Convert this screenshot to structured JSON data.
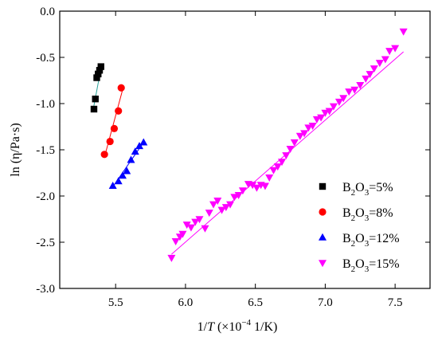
{
  "chart_data": {
    "type": "scatter",
    "title": "",
    "xlabel": "1/T (×10⁻⁴ 1/K)",
    "xlabel_parts": [
      "1/",
      "T",
      " (×10",
      "−4",
      " 1/K)"
    ],
    "ylabel": "ln (η/Pa·s)",
    "xlim": [
      5.1,
      7.75
    ],
    "ylim": [
      -3.0,
      0.0
    ],
    "xticks": [
      5.5,
      6.0,
      6.5,
      7.0,
      7.5
    ],
    "yticks": [
      0.0,
      -0.5,
      -1.0,
      -1.5,
      -2.0,
      -2.5,
      -3.0
    ],
    "xtick_labels": [
      "5.5",
      "6.0",
      "6.5",
      "7.0",
      "7.5"
    ],
    "ytick_labels": [
      "0.0",
      "-0.5",
      "-1.0",
      "-1.5",
      "-2.0",
      "-2.5",
      "-3.0"
    ],
    "grid": false,
    "legend_position": "bottom-right",
    "series": [
      {
        "name": "B2O3=5%",
        "name_parts": [
          "B",
          "2",
          "O",
          "3",
          "=5%"
        ],
        "marker": "square",
        "color": "#000000",
        "fit_color": "#2aa198",
        "x": [
          5.345,
          5.355,
          5.365,
          5.375,
          5.385,
          5.395
        ],
        "y": [
          -1.06,
          -0.95,
          -0.72,
          -0.68,
          -0.64,
          -0.6
        ],
        "fit": [
          [
            5.34,
            -1.06
          ],
          [
            5.4,
            -0.58
          ]
        ]
      },
      {
        "name": "B2O3=8%",
        "name_parts": [
          "B",
          "2",
          "O",
          "3",
          "=8%"
        ],
        "marker": "circle",
        "color": "#ff0000",
        "fit_color": "#ff0000",
        "x": [
          5.42,
          5.46,
          5.49,
          5.52,
          5.54
        ],
        "y": [
          -1.55,
          -1.41,
          -1.27,
          -1.08,
          -0.83
        ],
        "fit": [
          [
            5.42,
            -1.58
          ],
          [
            5.55,
            -0.85
          ]
        ]
      },
      {
        "name": "B2O3=12%",
        "name_parts": [
          "B",
          "2",
          "O",
          "3",
          "=12%"
        ],
        "marker": "triangle-up",
        "color": "#0000ff",
        "fit_color": "#0000ff",
        "x": [
          5.48,
          5.52,
          5.55,
          5.58,
          5.61,
          5.64,
          5.67,
          5.7
        ],
        "y": [
          -1.89,
          -1.84,
          -1.78,
          -1.73,
          -1.61,
          -1.52,
          -1.46,
          -1.42
        ],
        "fit": [
          [
            5.48,
            -1.9
          ],
          [
            5.7,
            -1.42
          ]
        ]
      },
      {
        "name": "B2O3=15%",
        "name_parts": [
          "B",
          "2",
          "O",
          "3",
          "=15%"
        ],
        "marker": "triangle-down",
        "color": "#ff00ff",
        "fit_color": "#ff00ff",
        "x": [
          5.9,
          5.93,
          5.96,
          5.98,
          6.01,
          6.04,
          6.07,
          6.1,
          6.14,
          6.17,
          6.2,
          6.23,
          6.26,
          6.29,
          6.32,
          6.35,
          6.38,
          6.41,
          6.45,
          6.48,
          6.51,
          6.54,
          6.57,
          6.6,
          6.63,
          6.66,
          6.69,
          6.72,
          6.75,
          6.78,
          6.82,
          6.85,
          6.88,
          6.91,
          6.94,
          6.97,
          7.0,
          7.03,
          7.06,
          7.1,
          7.13,
          7.17,
          7.21,
          7.25,
          7.29,
          7.32,
          7.35,
          7.39,
          7.43,
          7.46,
          7.5,
          7.56
        ],
        "y": [
          -2.67,
          -2.49,
          -2.44,
          -2.41,
          -2.31,
          -2.34,
          -2.28,
          -2.25,
          -2.35,
          -2.18,
          -2.09,
          -2.05,
          -2.15,
          -2.12,
          -2.09,
          -2.01,
          -1.99,
          -1.94,
          -1.87,
          -1.88,
          -1.91,
          -1.88,
          -1.89,
          -1.8,
          -1.72,
          -1.68,
          -1.63,
          -1.56,
          -1.49,
          -1.42,
          -1.35,
          -1.32,
          -1.26,
          -1.24,
          -1.17,
          -1.15,
          -1.1,
          -1.08,
          -1.03,
          -0.98,
          -0.94,
          -0.87,
          -0.85,
          -0.8,
          -0.73,
          -0.68,
          -0.62,
          -0.56,
          -0.52,
          -0.43,
          -0.4,
          -0.22
        ],
        "fit": [
          [
            5.9,
            -2.63
          ],
          [
            7.56,
            -0.44
          ]
        ]
      }
    ]
  }
}
